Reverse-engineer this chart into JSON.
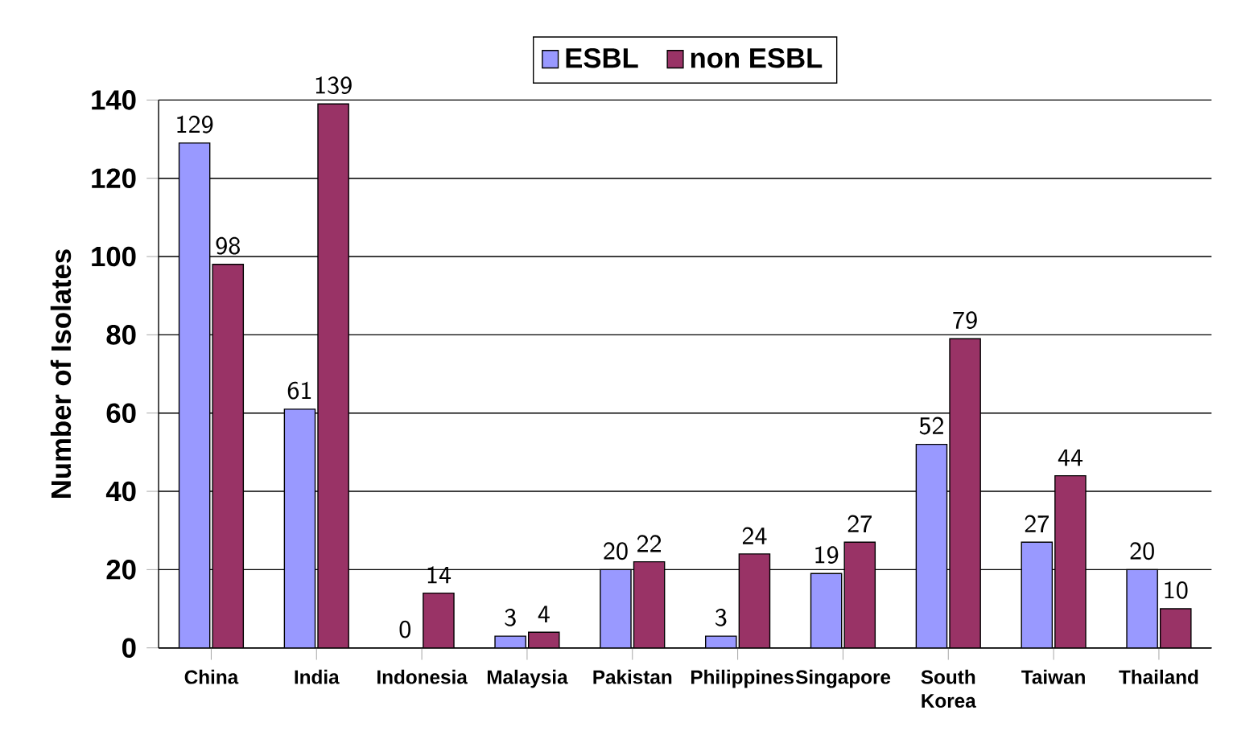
{
  "chart_data": {
    "type": "bar",
    "ylabel": "Number of Isolates",
    "categories": [
      "China",
      "India",
      "Indonesia",
      "Malaysia",
      "Pakistan",
      "Philippines",
      "Singapore",
      "South Korea",
      "Taiwan",
      "Thailand"
    ],
    "series": [
      {
        "name": "ESBL",
        "color": "#9999ff",
        "values": [
          129,
          61,
          0,
          3,
          20,
          3,
          19,
          52,
          27,
          20
        ]
      },
      {
        "name": "non ESBL",
        "color": "#993366",
        "values": [
          98,
          139,
          14,
          4,
          22,
          24,
          27,
          79,
          44,
          10
        ]
      }
    ],
    "ylim": [
      0,
      140
    ],
    "yticks": [
      0,
      20,
      40,
      60,
      80,
      100,
      120,
      140
    ],
    "grid": "y",
    "legend": "top",
    "data_labels": true
  }
}
